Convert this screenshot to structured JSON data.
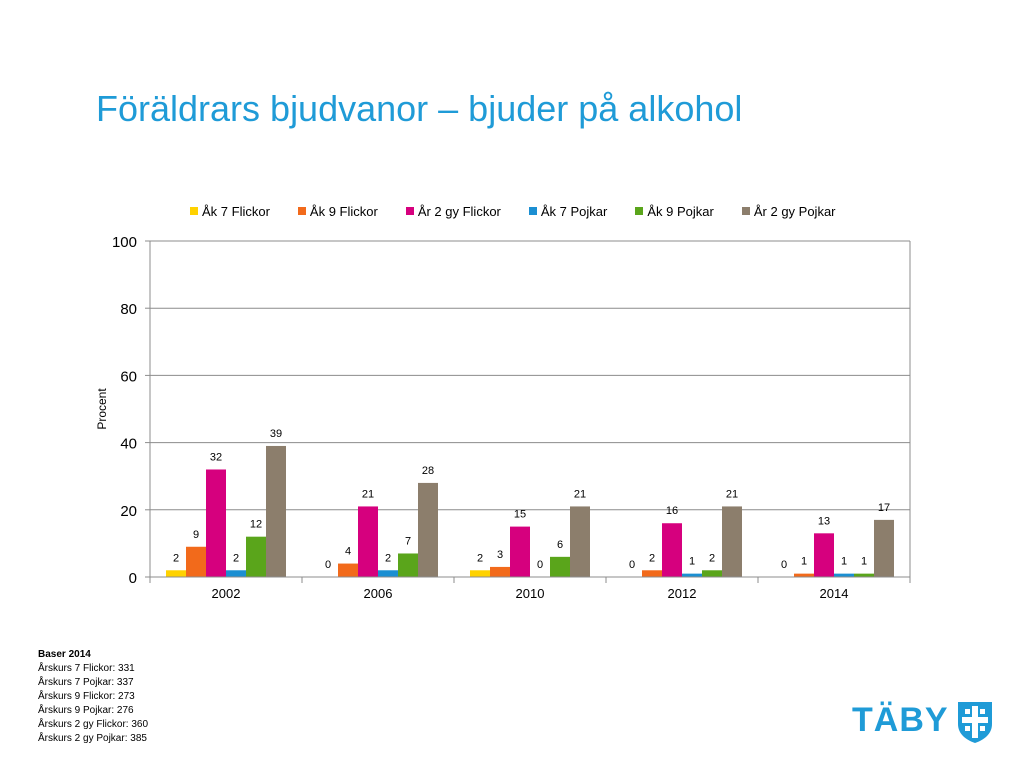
{
  "title": "Föräldrars bjudvanor – bjuder på alkohol",
  "chart_data": {
    "type": "bar",
    "categories": [
      "2002",
      "2006",
      "2010",
      "2012",
      "2014"
    ],
    "series": [
      {
        "name": "Åk 7 Flickor",
        "color": "#ffd200",
        "values": [
          2,
          0,
          2,
          0,
          0
        ]
      },
      {
        "name": "Åk 9 Flickor",
        "color": "#f26a1b",
        "values": [
          9,
          4,
          3,
          2,
          1
        ]
      },
      {
        "name": "År 2 gy Flickor",
        "color": "#d6007e",
        "values": [
          32,
          21,
          15,
          16,
          13
        ]
      },
      {
        "name": "Åk 7 Pojkar",
        "color": "#1b8fd2",
        "values": [
          2,
          2,
          0,
          1,
          1
        ]
      },
      {
        "name": "Åk 9 Pojkar",
        "color": "#5aa51b",
        "values": [
          12,
          7,
          6,
          2,
          1
        ]
      },
      {
        "name": "År 2 gy Pojkar",
        "color": "#8c7e6c",
        "values": [
          39,
          28,
          21,
          21,
          17
        ]
      }
    ],
    "ylabel": "Procent",
    "ylim": [
      0,
      100
    ],
    "yticks": [
      "0",
      "20",
      "40",
      "60",
      "80",
      "100"
    ],
    "grid": true,
    "legend": "top"
  },
  "footnote": {
    "heading": "Baser 2014",
    "lines": [
      "Årskurs 7 Flickor: 331",
      "Årskurs 7 Pojkar: 337",
      "Årskurs 9 Flickor: 273",
      "Årskurs 9 Pojkar: 276",
      "Årskurs 2 gy Flickor: 360",
      "Årskurs 2 gy Pojkar: 385"
    ]
  },
  "logo": {
    "text": "TÄBY",
    "color": "#1f9bd7"
  }
}
